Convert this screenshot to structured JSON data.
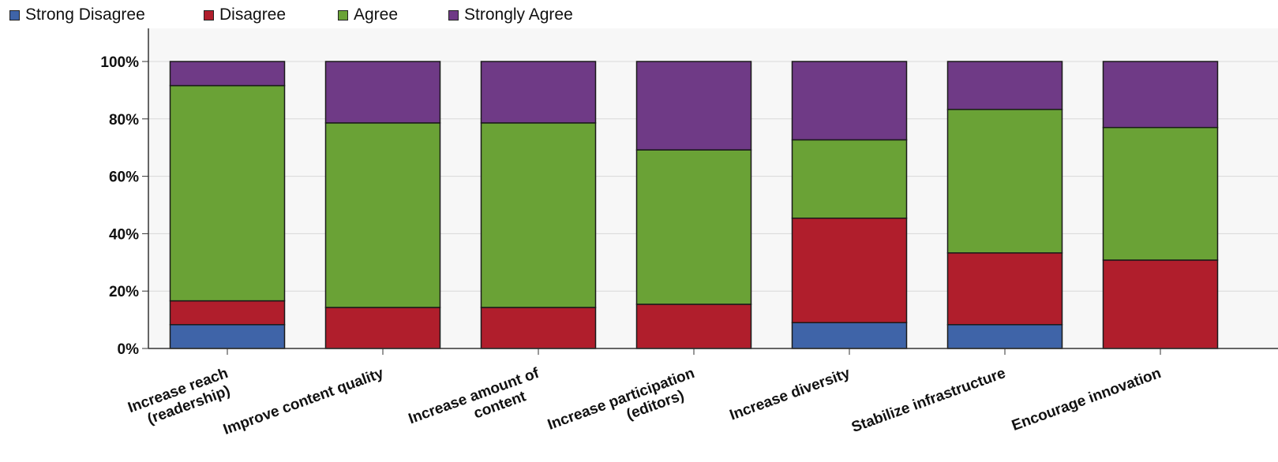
{
  "colors": {
    "strong_disagree": "#3f64a8",
    "disagree": "#b01e2c",
    "agree": "#6aa236",
    "strongly_agree": "#6f3a86",
    "plot_background": "#f7f7f7",
    "gridline": "#d8d8d8"
  },
  "chart_data": {
    "type": "bar",
    "stacked": true,
    "grid": true,
    "legend_position": "top-left",
    "ylim": [
      0,
      100
    ],
    "yticks": [
      0,
      20,
      40,
      60,
      80,
      100
    ],
    "ytick_labels": [
      "0%",
      "20%",
      "40%",
      "60%",
      "80%",
      "100%"
    ],
    "categories": [
      [
        "Increase reach",
        "(readership)"
      ],
      [
        "Improve content quality"
      ],
      [
        "Increase amount of",
        "content"
      ],
      [
        "Increase participation",
        "(editors)"
      ],
      [
        "Increase diversity"
      ],
      [
        "Stabilize infrastructure"
      ],
      [
        "Encourage innovation"
      ]
    ],
    "series": [
      {
        "name": "Strong Disagree",
        "values": [
          8.3,
          0,
          0,
          0,
          9,
          8.3,
          0
        ]
      },
      {
        "name": "Disagree",
        "values": [
          8.3,
          14.3,
          14.3,
          15.4,
          36.4,
          25,
          30.8
        ]
      },
      {
        "name": "Agree",
        "values": [
          75,
          64.3,
          64.3,
          53.8,
          27.3,
          50,
          46.2
        ]
      },
      {
        "name": "Strongly Agree",
        "values": [
          8.4,
          21.4,
          21.4,
          30.8,
          27.3,
          16.7,
          23
        ]
      }
    ]
  }
}
